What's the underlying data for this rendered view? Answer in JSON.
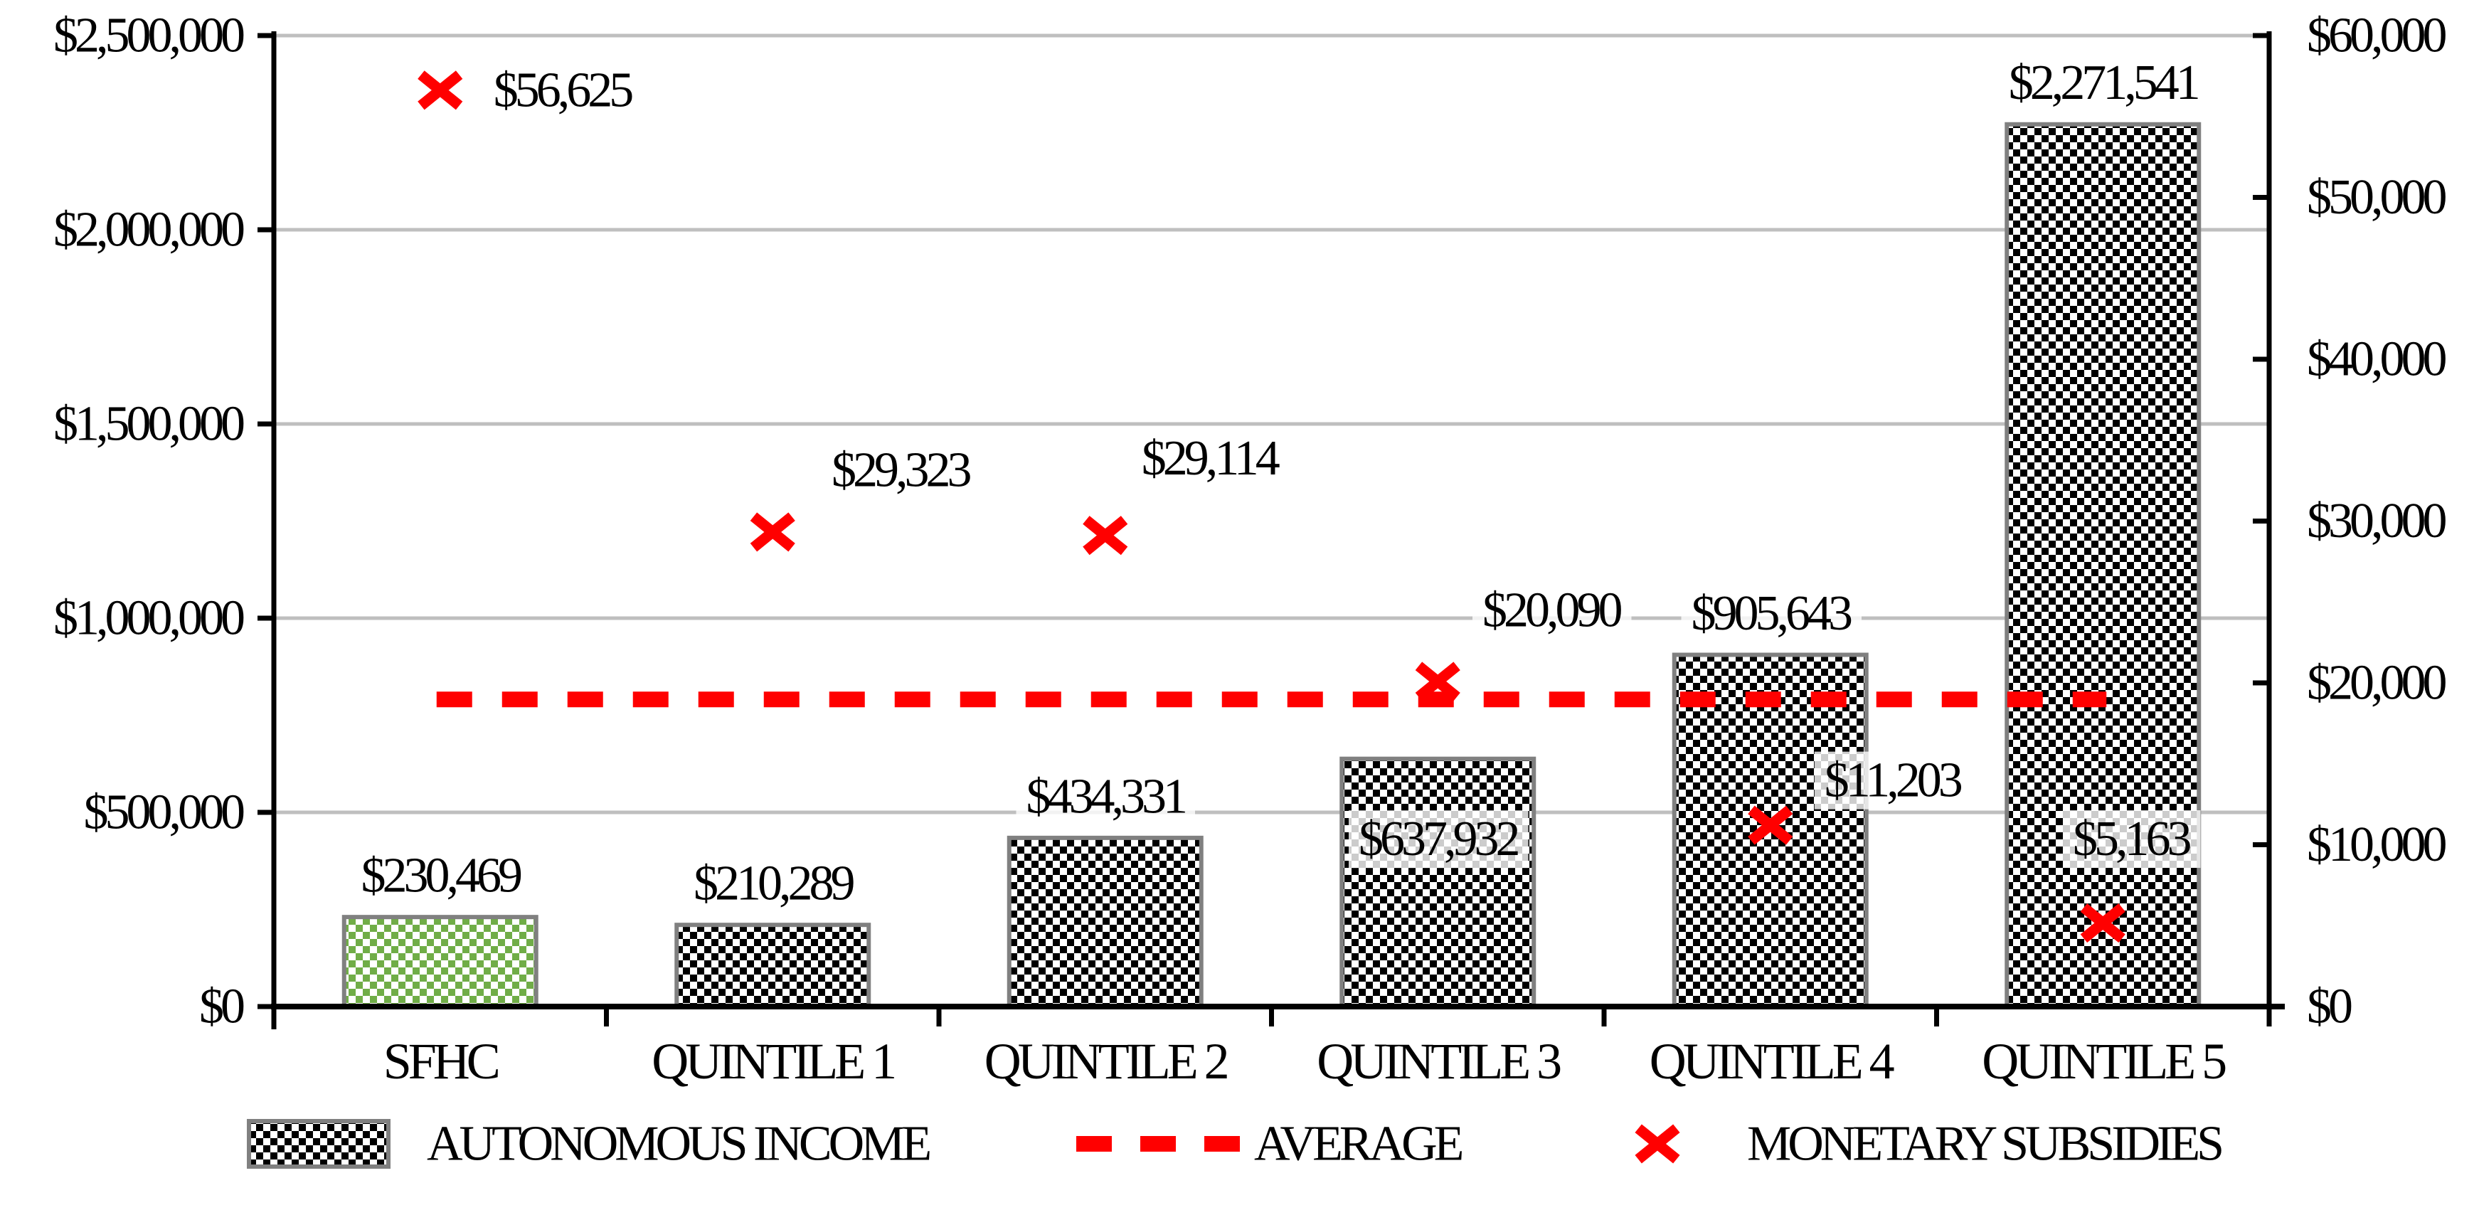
{
  "chart_data": {
    "type": "bar",
    "title": "",
    "categories": [
      "SFHC",
      "QUINTILE 1",
      "QUINTILE 2",
      "QUINTILE 3",
      "QUINTILE 4",
      "QUINTILE 5"
    ],
    "series": [
      {
        "name": "AUTONOMOUS INCOME",
        "type": "bar",
        "axis": "left",
        "values": [
          230469,
          210289,
          434331,
          637932,
          905643,
          2271541
        ],
        "labels": [
          "$230,469",
          "$210,289",
          "$434,331",
          "$637,932",
          "$905,643",
          "$2,271,541"
        ]
      },
      {
        "name": "MONETARY SUBSIDIES",
        "type": "scatter-x",
        "axis": "right",
        "values": [
          56625,
          29323,
          29114,
          20090,
          11203,
          5163
        ],
        "labels": [
          "$56,625",
          "$29,323",
          "$29,114",
          "$20,090",
          "$11,203",
          "$5,163"
        ]
      },
      {
        "name": "AVERAGE",
        "type": "dashed-line",
        "axis": "right",
        "average_line_value_estimate": 18979
      }
    ],
    "left_axis": {
      "min": 0,
      "max": 2500000,
      "step": 500000,
      "tick_labels": [
        "$0",
        "$500,000",
        "$1,000,000",
        "$1,500,000",
        "$2,000,000",
        "$2,500,000"
      ]
    },
    "right_axis": {
      "min": 0,
      "max": 60000,
      "step": 10000,
      "tick_labels": [
        "$0",
        "$10,000",
        "$20,000",
        "$30,000",
        "$40,000",
        "$50,000",
        "$60,000"
      ]
    },
    "grid": "horizontal-500k",
    "legend_position": "bottom",
    "colors": {
      "bar_pattern": "#000000",
      "sfhc_bar_pattern": "#70AD47",
      "bar_border": "#808080",
      "marker": "#FF0000",
      "average_line": "#FF0000",
      "gridline": "#BFBFBF",
      "axis": "#000000",
      "text": "#000000",
      "background": "#FFFFFF"
    }
  },
  "legend": {
    "items": [
      {
        "label": "AUTONOMOUS INCOME",
        "swatch": "checkered-bar-swatch"
      },
      {
        "label": "AVERAGE",
        "swatch": "red-dashed-line-swatch"
      },
      {
        "label": "MONETARY SUBSIDIES",
        "swatch": "red-x-marker-icon"
      }
    ]
  }
}
